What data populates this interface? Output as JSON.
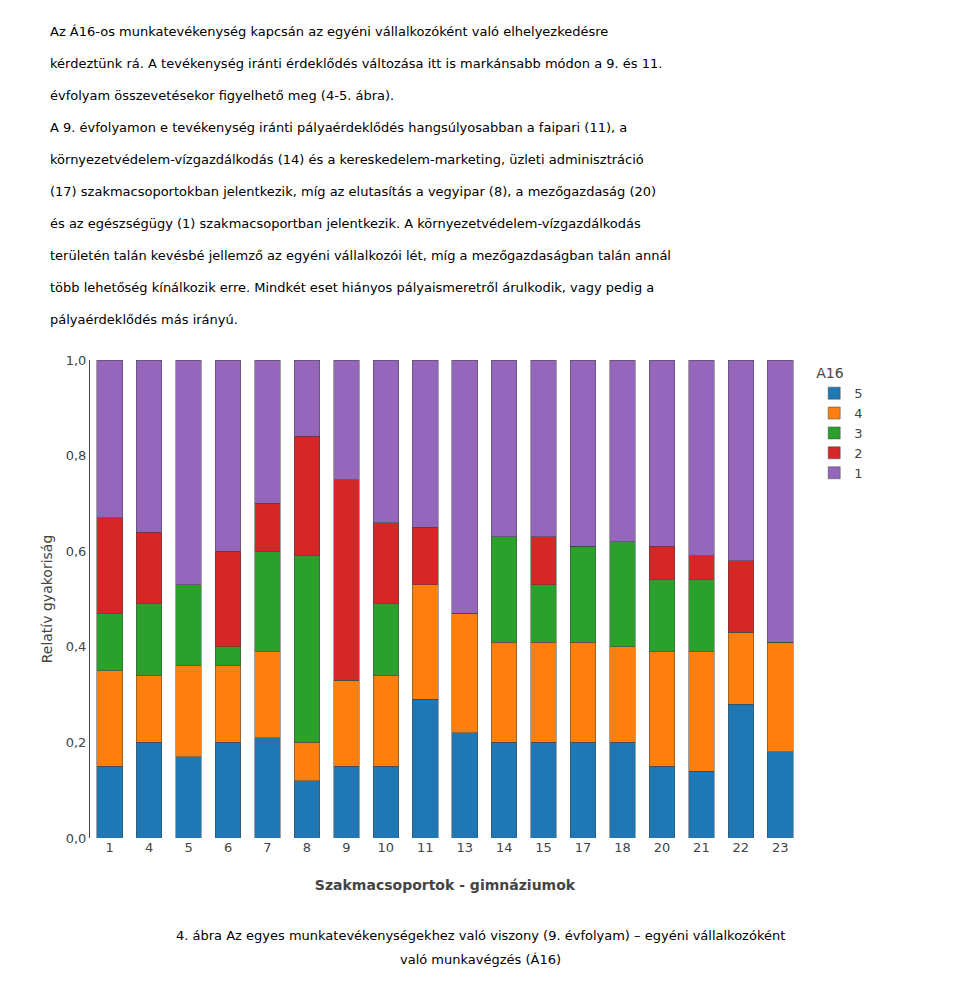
{
  "chart_data": {
    "type": "bar",
    "stacked": true,
    "grid": false,
    "legend": "right",
    "legend_title": "A16",
    "annotations": [
      "Az Á16-os munkatevékenység kapcsán az egyéni vállalkozóként való elhelyezkedésre",
      "kérdeztünk rá. A tevékenység iránti érdeklődés változása itt is markánsabb módon a 9. és 11.",
      "évfolyam összevetésekor figyelhető meg (4-5. ábra).",
      "A 9. évfolyamon e tevékenység iránti pályaérdeklődés hangsúlyosabban a faipari (11), a",
      "környezetvédelem-vízgazdálkodás (14) és a kereskedelem-marketing, üzleti adminisztráció",
      "(17) szakmacsoportokban jelentkezik, míg az elutasítás a vegyipar (8), a mezőgazdaság (20)",
      "és az egészségügy (1) szakmacsoportban jelentkezik. A környezetvédelem-vízgazdálkodás",
      "területén talán kevésbé jellemző az egyéni vállalkozói lét, míg a mezőgazdaságban talán annál",
      "több lehetőség kínálkozik erre. Mindkét eset hiányos pályaismeretről árulkodik, vagy pedig a",
      "pályaérdeklődés más irányú."
    ],
    "caption": [
      "4. ábra Az egyes munkatevékenységekhez való viszony (9. évfolyam) – egyéni vállalkozóként",
      "való munkavégzés (Á16)"
    ],
    "xlabel": "Szakmacsoportok - gimnáziumok",
    "ylabel": "Relatív gyakoriság",
    "categories": [
      "1",
      "4",
      "5",
      "6",
      "7",
      "8",
      "9",
      "10",
      "11",
      "13",
      "14",
      "15",
      "17",
      "18",
      "20",
      "21",
      "22",
      "23"
    ],
    "ylim": [
      0.0,
      1.0
    ],
    "yticks": [
      {
        "value": 0.0,
        "label": "0,0"
      },
      {
        "value": 0.2,
        "label": "0,2"
      },
      {
        "value": 0.4,
        "label": "0,4"
      },
      {
        "value": 0.6,
        "label": "0,6"
      },
      {
        "value": 0.8,
        "label": "0,8"
      },
      {
        "value": 1.0,
        "label": "1,0"
      }
    ],
    "series": [
      {
        "name": "5",
        "values": [
          0.15,
          0.2,
          0.17,
          0.2,
          0.21,
          0.12,
          0.15,
          0.15,
          0.29,
          0.22,
          0.2,
          0.2,
          0.2,
          0.2,
          0.15,
          0.14,
          0.28,
          0.18
        ]
      },
      {
        "name": "4",
        "values": [
          0.2,
          0.14,
          0.19,
          0.16,
          0.18,
          0.08,
          0.18,
          0.19,
          0.24,
          0.25,
          0.21,
          0.21,
          0.21,
          0.2,
          0.24,
          0.25,
          0.15,
          0.23
        ]
      },
      {
        "name": "3",
        "values": [
          0.12,
          0.15,
          0.17,
          0.04,
          0.21,
          0.39,
          0.0,
          0.15,
          0.0,
          0.0,
          0.22,
          0.12,
          0.2,
          0.22,
          0.15,
          0.15,
          0.0,
          0.0
        ]
      },
      {
        "name": "2",
        "values": [
          0.2,
          0.15,
          0.0,
          0.2,
          0.1,
          0.25,
          0.42,
          0.17,
          0.12,
          0.0,
          0.0,
          0.1,
          0.0,
          0.0,
          0.07,
          0.05,
          0.15,
          0.0
        ]
      },
      {
        "name": "1",
        "values": [
          0.33,
          0.36,
          0.47,
          0.4,
          0.3,
          0.16,
          0.25,
          0.34,
          0.35,
          0.53,
          0.37,
          0.37,
          0.39,
          0.38,
          0.39,
          0.41,
          0.42,
          0.59
        ]
      }
    ]
  }
}
